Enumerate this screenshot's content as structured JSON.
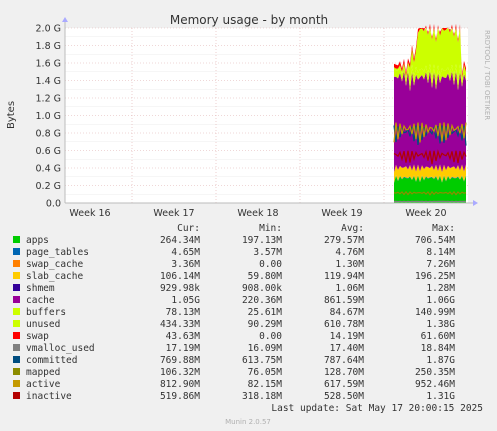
{
  "chart_data": {
    "type": "area",
    "title": "Memory usage - by month",
    "ylabel": "Bytes",
    "side_label": "RRDTOOL / TOBI OETIKER",
    "y_ticks": [
      "0.0",
      "0.2 G",
      "0.4 G",
      "0.6 G",
      "0.8 G",
      "1.0 G",
      "1.2 G",
      "1.4 G",
      "1.6 G",
      "1.8 G",
      "2.0 G"
    ],
    "ylim": [
      0,
      2.0
    ],
    "x_ticks": [
      "Week 16",
      "Week 17",
      "Week 18",
      "Week 19",
      "Week 20"
    ],
    "grid": true,
    "columns": [
      "Cur:",
      "Min:",
      "Avg:",
      "Max:"
    ],
    "series": [
      {
        "name": "apps",
        "color": "#00CC00",
        "cur": "264.34M",
        "min": "197.13M",
        "avg": "279.57M",
        "max": "706.54M",
        "approx_gb": 0.27
      },
      {
        "name": "page_tables",
        "color": "#0066B3",
        "cur": "4.65M",
        "min": "3.57M",
        "avg": "4.76M",
        "max": "8.14M",
        "approx_gb": 0.005
      },
      {
        "name": "swap_cache",
        "color": "#FF8000",
        "cur": "3.36M",
        "min": "0.00",
        "avg": "1.30M",
        "max": "7.26M",
        "approx_gb": 0.003
      },
      {
        "name": "slab_cache",
        "color": "#FFCC00",
        "cur": "106.14M",
        "min": "59.80M",
        "avg": "119.94M",
        "max": "196.25M",
        "approx_gb": 0.11
      },
      {
        "name": "shmem",
        "color": "#330099",
        "cur": "929.98k",
        "min": "908.00k",
        "avg": "1.06M",
        "max": "1.28M",
        "approx_gb": 0.001
      },
      {
        "name": "cache",
        "color": "#990099",
        "cur": "1.05G",
        "min": "220.36M",
        "avg": "861.59M",
        "max": "1.06G",
        "approx_gb": 0.98
      },
      {
        "name": "buffers",
        "color": "#CCFF00",
        "cur": "78.13M",
        "min": "25.61M",
        "avg": "84.67M",
        "max": "140.99M",
        "approx_gb": 0.08
      },
      {
        "name": "unused",
        "color": "#CCFF00",
        "cur": "434.33M",
        "min": "90.29M",
        "avg": "610.78M",
        "max": "1.38G",
        "approx_gb": 0.46
      },
      {
        "name": "swap",
        "color": "#FF0000",
        "cur": "43.63M",
        "min": "0.00",
        "avg": "14.19M",
        "max": "61.60M",
        "approx_gb": 0.04
      },
      {
        "name": "vmalloc_used",
        "color": "#808080",
        "cur": "17.19M",
        "min": "16.09M",
        "avg": "17.40M",
        "max": "18.84M"
      },
      {
        "name": "committed",
        "color": "#004D80",
        "cur": "769.88M",
        "min": "613.75M",
        "avg": "787.64M",
        "max": "1.87G"
      },
      {
        "name": "mapped",
        "color": "#8C8C00",
        "cur": "106.32M",
        "min": "76.05M",
        "avg": "128.70M",
        "max": "250.35M"
      },
      {
        "name": "active",
        "color": "#C49A00",
        "cur": "812.90M",
        "min": "82.15M",
        "avg": "617.59M",
        "max": "952.46M"
      },
      {
        "name": "inactive",
        "color": "#B30000",
        "cur": "519.86M",
        "min": "318.18M",
        "avg": "528.50M",
        "max": "1.31G"
      }
    ],
    "footer": "Last update: Sat May 17 20:00:15 2025",
    "version": "Munin 2.0.57"
  }
}
